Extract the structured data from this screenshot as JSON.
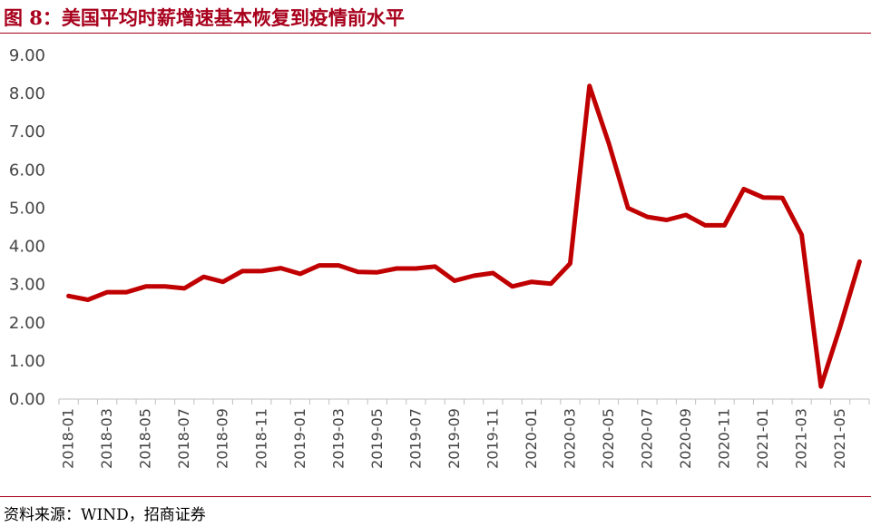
{
  "figure": {
    "title": "图 8：美国平均时薪增速基本恢复到疫情前水平",
    "source": "资料来源：WIND，招商证券"
  },
  "chart_data": {
    "type": "line",
    "ylim": [
      0,
      9
    ],
    "yticks": [
      "0.00",
      "1.00",
      "2.00",
      "3.00",
      "4.00",
      "5.00",
      "6.00",
      "7.00",
      "8.00",
      "9.00"
    ],
    "grid": false,
    "legend": "none",
    "line_color": "#c00000",
    "x": [
      "2018-01",
      "2018-02",
      "2018-03",
      "2018-04",
      "2018-05",
      "2018-06",
      "2018-07",
      "2018-08",
      "2018-09",
      "2018-10",
      "2018-11",
      "2018-12",
      "2019-01",
      "2019-02",
      "2019-03",
      "2019-04",
      "2019-05",
      "2019-06",
      "2019-07",
      "2019-08",
      "2019-09",
      "2019-10",
      "2019-11",
      "2019-12",
      "2020-01",
      "2020-02",
      "2020-03",
      "2020-04",
      "2020-05",
      "2020-06",
      "2020-07",
      "2020-08",
      "2020-09",
      "2020-10",
      "2020-11",
      "2020-12",
      "2021-01",
      "2021-02",
      "2021-03",
      "2021-04",
      "2021-05",
      "2021-06"
    ],
    "xtick_labels": [
      "2018-01",
      "2018-03",
      "2018-05",
      "2018-07",
      "2018-09",
      "2018-11",
      "2019-01",
      "2019-03",
      "2019-05",
      "2019-07",
      "2019-09",
      "2019-11",
      "2020-01",
      "2020-03",
      "2020-05",
      "2020-07",
      "2020-09",
      "2020-11",
      "2021-01",
      "2021-03",
      "2021-05"
    ],
    "series": [
      {
        "values": [
          2.7,
          2.6,
          2.8,
          2.8,
          2.95,
          2.95,
          2.9,
          3.2,
          3.07,
          3.35,
          3.35,
          3.43,
          3.28,
          3.5,
          3.5,
          3.33,
          3.32,
          3.42,
          3.42,
          3.47,
          3.1,
          3.23,
          3.3,
          2.95,
          3.07,
          3.02,
          3.55,
          8.2,
          6.7,
          5.0,
          4.77,
          4.69,
          4.82,
          4.55,
          4.55,
          5.5,
          5.28,
          5.27,
          4.3,
          0.33,
          1.9,
          3.6
        ]
      }
    ]
  }
}
